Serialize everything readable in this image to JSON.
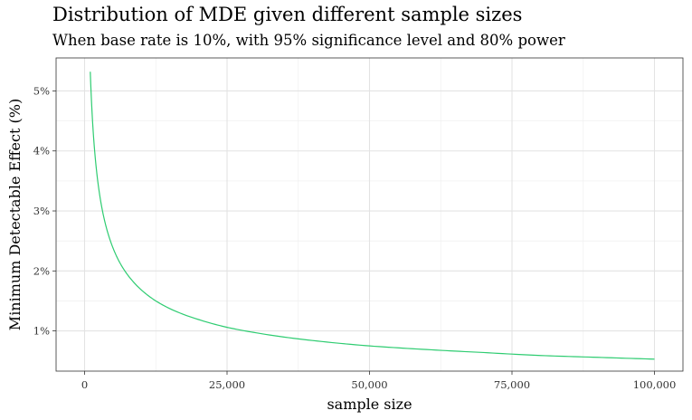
{
  "chart_data": {
    "type": "line",
    "title": "Distribution of MDE given different sample sizes",
    "subtitle": "When base rate is 10%, with 95% significance level and 80% power",
    "xlabel": "sample size",
    "ylabel": "Minimum Detectable Effect (%)",
    "xlim": [
      -5000,
      105000
    ],
    "ylim": [
      0.33,
      5.55
    ],
    "x_ticks": [
      0,
      25000,
      50000,
      75000,
      100000
    ],
    "x_tick_labels": [
      "0",
      "25,000",
      "50,000",
      "75,000",
      "100,000"
    ],
    "y_ticks": [
      1,
      2,
      3,
      4,
      5
    ],
    "y_tick_labels": [
      "1%",
      "2%",
      "3%",
      "4%",
      "5%"
    ],
    "grid": true,
    "line_color": "#2ECC71",
    "series": [
      {
        "x": [
          1000,
          1500,
          2000,
          3000,
          4000,
          5000,
          6000,
          8000,
          10000,
          12500,
          15000,
          20000,
          25000,
          30000,
          40000,
          50000,
          60000,
          70000,
          80000,
          90000,
          100000
        ],
        "values": [
          5.32,
          4.34,
          3.76,
          3.07,
          2.66,
          2.38,
          2.17,
          1.88,
          1.68,
          1.5,
          1.37,
          1.19,
          1.06,
          0.97,
          0.84,
          0.75,
          0.69,
          0.64,
          0.59,
          0.56,
          0.53
        ]
      }
    ]
  }
}
